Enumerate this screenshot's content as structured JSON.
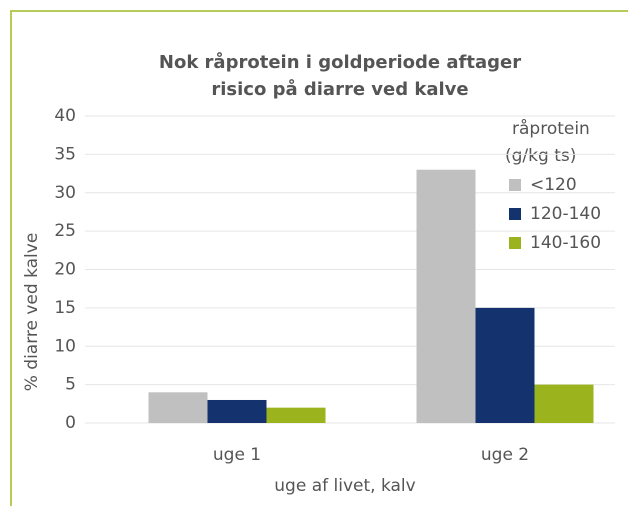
{
  "chart_data": {
    "type": "bar",
    "title": [
      "Nok råprotein i goldperiode aftager",
      "risico på diarre ved kalve"
    ],
    "ylabel": "% diarre ved kalve",
    "xlabel": "uge af livet, kalv",
    "legend_title": [
      "råprotein",
      "(g/kg ts)"
    ],
    "legend_position": "upper right",
    "categories": [
      "uge 1",
      "uge 2"
    ],
    "series": [
      {
        "name": "<120",
        "color": "#c0c0c0",
        "values": [
          4,
          33
        ]
      },
      {
        "name": "120-140",
        "color": "#14336e",
        "values": [
          3,
          15
        ]
      },
      {
        "name": "140-160",
        "color": "#9bb41e",
        "values": [
          2,
          5
        ]
      }
    ],
    "ylim": [
      0,
      40
    ],
    "yticks": [
      0,
      5,
      10,
      15,
      20,
      25,
      30,
      35,
      40
    ],
    "grid": true
  }
}
